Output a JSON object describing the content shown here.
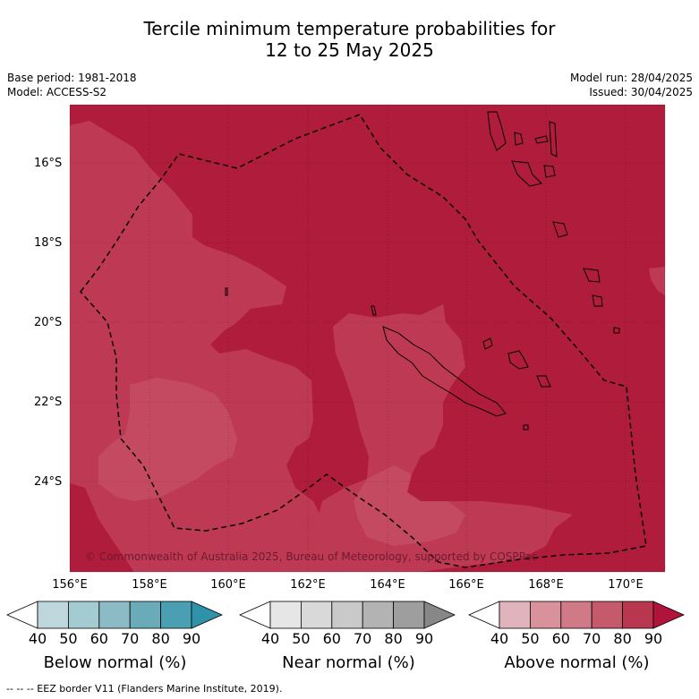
{
  "title": {
    "line1": "Tercile minimum temperature probabilities for",
    "line2": "12 to 25 May 2025"
  },
  "meta": {
    "base_period": "Base period: 1981-2018",
    "model": "Model: ACCESS-S2",
    "model_run": "Model run: 28/04/2025",
    "issued": "Issued: 30/04/2025"
  },
  "map": {
    "copyright": "© Commonwealth of Australia 2025, Bureau of Meteorology, supported by COSPPac",
    "lat_labels": [
      "16°S",
      "18°S",
      "20°S",
      "22°S",
      "24°S"
    ],
    "lon_labels": [
      "156°E",
      "158°E",
      "160°E",
      "162°E",
      "164°E",
      "166°E",
      "168°E",
      "170°E"
    ],
    "colors": {
      "dominant": "#b01c3b",
      "lighter": "#be3a54",
      "lightest": "#c44a62"
    }
  },
  "colorbars": [
    {
      "title": "Below normal (%)",
      "ticks": [
        "40",
        "50",
        "60",
        "70",
        "80",
        "90"
      ],
      "colors": [
        "#ffffff",
        "#bdd7dc",
        "#a5cbd2",
        "#8bbcc6",
        "#6aabb9",
        "#4aa0b2",
        "#2e93a8"
      ]
    },
    {
      "title": "Near normal (%)",
      "ticks": [
        "40",
        "50",
        "60",
        "70",
        "80",
        "90"
      ],
      "colors": [
        "#ffffff",
        "#e6e6e6",
        "#d9d9d9",
        "#c9c9c9",
        "#b3b3b3",
        "#9e9e9e",
        "#878787"
      ]
    },
    {
      "title": "Above normal (%)",
      "ticks": [
        "40",
        "50",
        "60",
        "70",
        "80",
        "90"
      ],
      "colors": [
        "#ffffff",
        "#e0b4bc",
        "#d9929c",
        "#cf7a86",
        "#c45a6b",
        "#b8374f",
        "#b0143a"
      ]
    }
  ],
  "footer": "--  --  -- EEZ border V11 (Flanders Marine Institute, 2019)."
}
